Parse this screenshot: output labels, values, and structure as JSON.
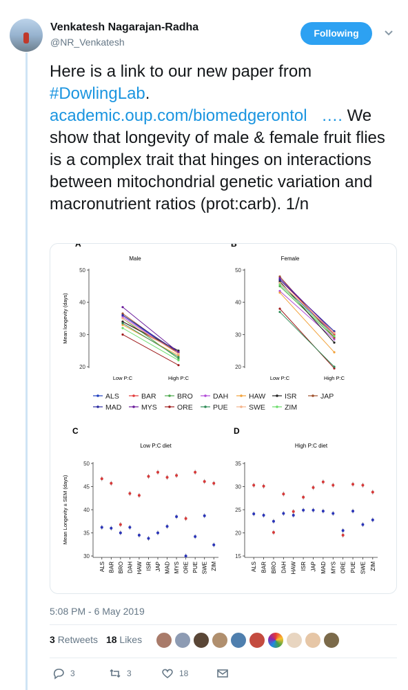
{
  "author": {
    "name": "Venkatesh Nagarajan-Radha",
    "handle": "@NR_Venkatesh",
    "follow_label": "Following"
  },
  "tweet": {
    "line1": "Here is a link to our new paper from",
    "hashtag": "#DowlingLab",
    "after_hashtag": ".",
    "link": "academic.oup.com/biomedgerontol",
    "link_ellipsis": "….",
    "body": "We show that longevity of male & female fruit flies is a complex trait that hinges on interactions between mitochondrial genetic variation and macronutrient ratios (prot:carb). 1/n",
    "timestamp": "5:08 PM - 6 May 2019"
  },
  "stats": {
    "retweets_count": "3",
    "retweets_label": "Retweets",
    "likes_count": "18",
    "likes_label": "Likes"
  },
  "actions": {
    "reply_count": "3",
    "retweet_count": "3",
    "like_count": "18"
  },
  "icons": {
    "reply": "reply-icon",
    "retweet": "retweet-icon",
    "like": "heart-icon",
    "message": "envelope-icon",
    "caret": "chevron-down-icon"
  },
  "colors": {
    "accent": "#1da1f2",
    "follow_button": "#2da1f2",
    "link": "#1b95e0",
    "muted": "#657786"
  },
  "chart_data": [
    {
      "type": "line",
      "panel": "A",
      "title": "Male",
      "x": [
        "Low P:C",
        "High P:C"
      ],
      "ylabel": "Mean longevity (days)",
      "ylim": [
        20,
        50
      ],
      "yticks": [
        20,
        30,
        40,
        50
      ],
      "series": [
        {
          "name": "ALS",
          "values": [
            36,
            24
          ]
        },
        {
          "name": "BAR",
          "values": [
            34,
            24.5
          ]
        },
        {
          "name": "BRO",
          "values": [
            35,
            22.5
          ]
        },
        {
          "name": "DAH",
          "values": [
            35.5,
            24
          ]
        },
        {
          "name": "HAW",
          "values": [
            33,
            23.5
          ]
        },
        {
          "name": "ISR",
          "values": [
            34,
            25
          ]
        },
        {
          "name": "JAP",
          "values": [
            36.5,
            24
          ]
        },
        {
          "name": "MAD",
          "values": [
            36,
            24.5
          ]
        },
        {
          "name": "MYS",
          "values": [
            38.5,
            24.5
          ]
        },
        {
          "name": "ORE",
          "values": [
            30,
            20.5
          ]
        },
        {
          "name": "PUE",
          "values": [
            33.5,
            23
          ]
        },
        {
          "name": "SWE",
          "values": [
            35,
            24
          ]
        },
        {
          "name": "ZIM",
          "values": [
            32,
            22
          ]
        }
      ]
    },
    {
      "type": "line",
      "panel": "B",
      "title": "Female",
      "x": [
        "Low P:C",
        "High P:C"
      ],
      "ylim": [
        20,
        50
      ],
      "yticks": [
        20,
        30,
        40,
        50
      ],
      "series": [
        {
          "name": "ALS",
          "values": [
            46,
            30
          ]
        },
        {
          "name": "BAR",
          "values": [
            47,
            30
          ]
        },
        {
          "name": "BRO",
          "values": [
            45,
            29
          ]
        },
        {
          "name": "DAH",
          "values": [
            43.5,
            28.5
          ]
        },
        {
          "name": "HAW",
          "values": [
            43,
            24.5
          ]
        },
        {
          "name": "ISR",
          "values": [
            46.5,
            27.5
          ]
        },
        {
          "name": "JAP",
          "values": [
            48,
            29
          ]
        },
        {
          "name": "MAD",
          "values": [
            47,
            31
          ]
        },
        {
          "name": "MYS",
          "values": [
            47.5,
            30.5
          ]
        },
        {
          "name": "ORE",
          "values": [
            38,
            19.5
          ]
        },
        {
          "name": "PUE",
          "values": [
            37,
            20
          ]
        },
        {
          "name": "SWE",
          "values": [
            46,
            30.5
          ]
        },
        {
          "name": "ZIM",
          "values": [
            45.5,
            29.5
          ]
        }
      ]
    },
    {
      "type": "scatter",
      "panel": "C",
      "title": "Low P:C diet",
      "ylabel": "Mean Longevity ± SEM (days)",
      "categories": [
        "ALS",
        "BAR",
        "BRO",
        "DAH",
        "HAW",
        "ISR",
        "JAP",
        "MAD",
        "MYS",
        "ORE",
        "PUE",
        "SWE",
        "ZIM"
      ],
      "ylim": [
        30,
        50
      ],
      "yticks": [
        30,
        35,
        40,
        45,
        50
      ],
      "series": [
        {
          "values": [
            36.2,
            36,
            35,
            36.2,
            34.5,
            33.8,
            35,
            36.4,
            38.5,
            30,
            34.2,
            38.7,
            32.4
          ]
        },
        {
          "values": [
            46.7,
            45.7,
            36.8,
            43.5,
            43.1,
            47.2,
            48.1,
            47,
            47.4,
            38.1,
            48.1,
            46.1,
            45.7
          ]
        }
      ]
    },
    {
      "type": "scatter",
      "panel": "D",
      "title": "High P:C diet",
      "categories": [
        "ALS",
        "BAR",
        "BRO",
        "DAH",
        "HAW",
        "ISR",
        "JAP",
        "MAD",
        "MYS",
        "ORE",
        "PUE",
        "SWE",
        "ZIM"
      ],
      "ylim": [
        15,
        35
      ],
      "yticks": [
        15,
        20,
        25,
        30,
        35
      ],
      "series": [
        {
          "values": [
            24.1,
            23.8,
            22.5,
            24.2,
            23.8,
            24.9,
            24.9,
            24.7,
            24.2,
            20.5,
            24.7,
            21.8,
            22.8
          ]
        },
        {
          "values": [
            30.3,
            30.1,
            20.1,
            28.4,
            24.6,
            27.7,
            29.8,
            31,
            30.3,
            19.5,
            30.5,
            30.3,
            28.8
          ]
        }
      ]
    }
  ],
  "legend": {
    "labels": [
      "ALS",
      "BAR",
      "BRO",
      "DAH",
      "HAW",
      "ISR",
      "JAP",
      "MAD",
      "MYS",
      "ORE",
      "PUE",
      "SWE",
      "ZIM"
    ],
    "colors": [
      "#1f3fbf",
      "#e23b3b",
      "#4aa84a",
      "#b14ad8",
      "#f2a23a",
      "#222222",
      "#a0522d",
      "#2a2aa0",
      "#6a1b9a",
      "#9e1b1b",
      "#2e8b57",
      "#f5b38a",
      "#6bdc6b"
    ]
  },
  "panel_letters": [
    "A",
    "B",
    "C",
    "D"
  ],
  "axis_x_labels": [
    "Low P:C",
    "High P:C"
  ]
}
